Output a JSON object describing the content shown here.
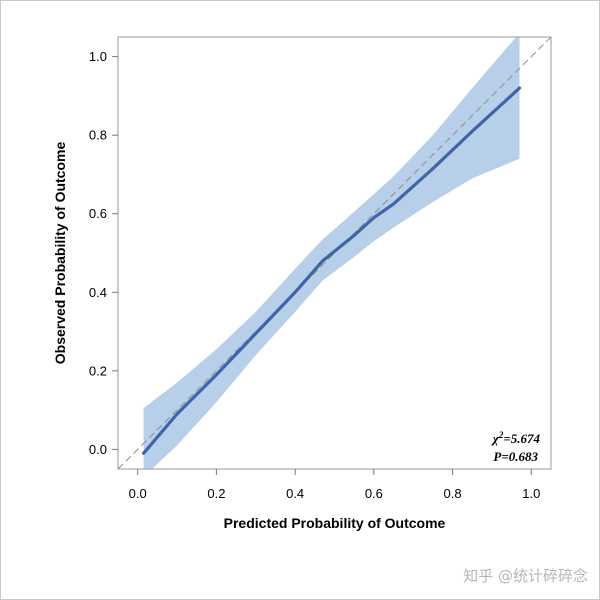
{
  "chart_data": {
    "type": "line",
    "xlabel": "Predicted Probability of Outcome",
    "ylabel": "Observed Probability of Outcome",
    "xlim": [
      -0.05,
      1.05
    ],
    "ylim": [
      -0.05,
      1.05
    ],
    "xticks": [
      "0.0",
      "0.2",
      "0.4",
      "0.6",
      "0.8",
      "1.0"
    ],
    "yticks": [
      "0.0",
      "0.2",
      "0.4",
      "0.6",
      "0.8",
      "1.0"
    ],
    "grid": false,
    "reference_line": {
      "x": [
        -0.05,
        1.05
      ],
      "y": [
        -0.05,
        1.05
      ],
      "style": "dashed",
      "color": "#8c8c8c"
    },
    "series": [
      {
        "x": [
          0.015,
          0.1,
          0.2,
          0.3,
          0.4,
          0.47,
          0.55,
          0.6,
          0.65,
          0.75,
          0.85,
          0.97
        ],
        "y": [
          -0.01,
          0.09,
          0.19,
          0.295,
          0.4,
          0.48,
          0.545,
          0.59,
          0.625,
          0.715,
          0.81,
          0.92
        ],
        "color": "#3f64a8"
      }
    ],
    "band": {
      "x": [
        0.015,
        0.1,
        0.2,
        0.3,
        0.4,
        0.47,
        0.55,
        0.6,
        0.65,
        0.75,
        0.85,
        0.97
      ],
      "lower": [
        -0.07,
        0.01,
        0.12,
        0.24,
        0.35,
        0.43,
        0.49,
        0.53,
        0.565,
        0.63,
        0.69,
        0.74
      ],
      "upper": [
        0.105,
        0.17,
        0.255,
        0.35,
        0.46,
        0.535,
        0.605,
        0.65,
        0.695,
        0.8,
        0.92,
        1.06
      ],
      "color": "#b8cfea"
    },
    "annotations": [
      {
        "text": "χ²=5.674",
        "position": "bottom-right"
      },
      {
        "text": "P=0.683",
        "position": "bottom-right"
      }
    ]
  },
  "watermark": "知乎 @统计碎碎念"
}
